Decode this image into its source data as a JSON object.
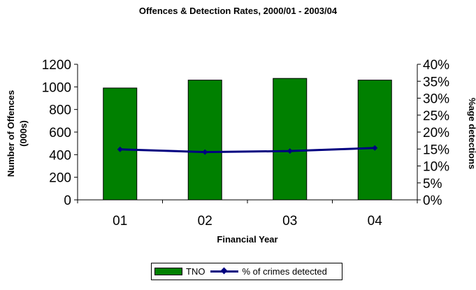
{
  "chart_data": {
    "type": "bar",
    "title": "Offences & Detection Rates, 2000/01 - 2003/04",
    "xlabel": "Financial Year",
    "ylabel": [
      "Number of Offences",
      "(000s)"
    ],
    "y2label": "%age detections",
    "categories": [
      "01",
      "02",
      "03",
      "04"
    ],
    "ylim": [
      0,
      1200
    ],
    "yticks": [
      "0",
      "200",
      "400",
      "600",
      "800",
      "1000",
      "1200"
    ],
    "y2lim": [
      0,
      40
    ],
    "y2ticks": [
      "0%",
      "5%",
      "10%",
      "15%",
      "20%",
      "25%",
      "30%",
      "35%",
      "40%"
    ],
    "grid": false,
    "legend_position": "bottom",
    "series": [
      {
        "name": "TNO",
        "type": "bar",
        "axis": "left",
        "color": "#008000",
        "values": [
          990,
          1060,
          1075,
          1060
        ]
      },
      {
        "name": "% of crimes detected",
        "type": "line",
        "axis": "right",
        "color": "#000080",
        "marker": "diamond",
        "values": [
          14.9,
          14.1,
          14.4,
          15.3
        ]
      }
    ]
  }
}
